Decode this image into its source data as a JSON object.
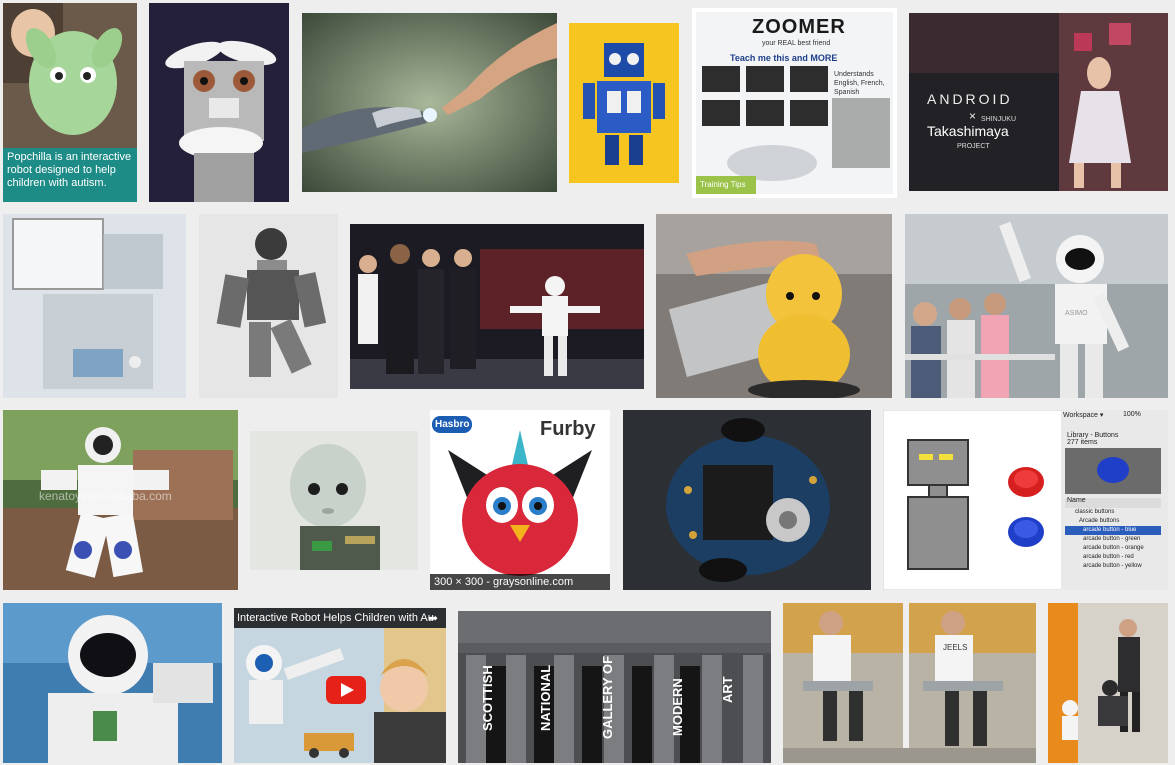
{
  "images": [
    {
      "name": "popchilla",
      "caption": "Popchilla is an interactive robot designed to help children with autism."
    },
    {
      "name": "eye-robot"
    },
    {
      "name": "robot-hand-touch"
    },
    {
      "name": "blue-tin-robot"
    },
    {
      "name": "zoomer",
      "logo": "ZOOMER",
      "tagline": "your REAL best friend",
      "teach": "Teach me this and MORE",
      "lang": "Understands English, French, Spanish",
      "tips": "Training Tips"
    },
    {
      "name": "android-takashimaya",
      "title": "ANDROID",
      "x": "×",
      "brand": "Takashimaya",
      "place": "SHINJUKU",
      "project": "PROJECT"
    },
    {
      "name": "robot-arm-kiosk"
    },
    {
      "name": "humanoid-bw"
    },
    {
      "name": "asimo-obama"
    },
    {
      "name": "yellow-keepon"
    },
    {
      "name": "asimo-waving",
      "label": "ASIMO"
    },
    {
      "name": "white-robot-toy",
      "watermark": "kenatoys.en.alibaba.com"
    },
    {
      "name": "baby-robot-head"
    },
    {
      "name": "furby",
      "brand": "Hasbro",
      "product": "Furby",
      "info": "300 × 300 - graysonline.com"
    },
    {
      "name": "circuit-robot"
    },
    {
      "name": "flash-library",
      "workspace": "Workspace ▾",
      "zoom": "100%",
      "panel_title": "Library - Buttons",
      "count": "277 items",
      "col_name": "Name",
      "items": [
        "classic buttons",
        "Arcade buttons",
        "arcade button - blue",
        "arcade button - green",
        "arcade button - orange",
        "arcade button - red",
        "arcade button - yellow"
      ]
    },
    {
      "name": "astronaut-asimo"
    },
    {
      "name": "nao-video",
      "title": "Interactive Robot Helps Children with Au"
    },
    {
      "name": "scottish-gallery",
      "words": [
        "SCOTTISH",
        "NATIONAL",
        "GALLERY OF",
        "MODERN",
        "ART"
      ]
    },
    {
      "name": "exoskeleton",
      "shirt": "JEELS"
    },
    {
      "name": "nao-expo"
    }
  ],
  "colors": {
    "page_bg": "#eeeeee",
    "popchilla_teal": "#1d8b86",
    "youtube_red": "#e62117"
  }
}
